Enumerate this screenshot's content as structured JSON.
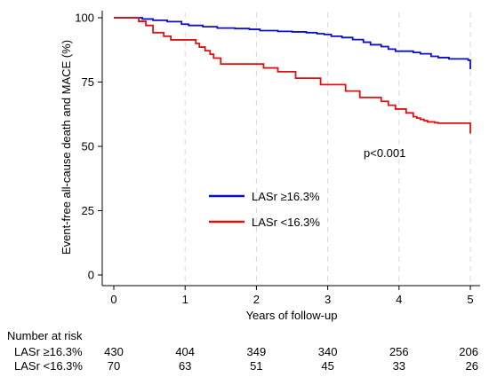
{
  "chart_data": {
    "type": "line",
    "xlabel": "Years of follow-up",
    "ylabel": "Event-free all-cause death and MACE (%)",
    "xlim": [
      0,
      5
    ],
    "ylim": [
      0,
      100
    ],
    "xticks": [
      0,
      1,
      2,
      3,
      4,
      5
    ],
    "yticks": [
      0,
      25,
      50,
      75,
      100
    ],
    "grid": "vertical dashed at x ticks",
    "annotation": "p<0.001",
    "legend": {
      "placement": "center-right"
    },
    "series": [
      {
        "name": "LASr ≥16.3%",
        "color": "#0a10c8",
        "x": [
          0,
          0.4,
          0.55,
          0.75,
          0.95,
          1.05,
          1.25,
          1.45,
          1.7,
          1.9,
          2.05,
          2.3,
          2.5,
          2.7,
          2.85,
          2.95,
          3.05,
          3.2,
          3.35,
          3.5,
          3.6,
          3.75,
          3.85,
          3.95,
          4.2,
          4.3,
          4.45,
          4.55,
          4.7,
          4.97,
          5.0
        ],
        "y": [
          100,
          99.5,
          99,
          98.5,
          97.5,
          97,
          96.5,
          96,
          95.8,
          95.5,
          95,
          94.7,
          94.5,
          94.2,
          93.8,
          93.5,
          92.8,
          92.3,
          91.5,
          90.5,
          89.5,
          88.8,
          87.8,
          87,
          86.5,
          86,
          85,
          84.5,
          84,
          83.5,
          80
        ]
      },
      {
        "name": "LASr <16.3%",
        "color": "#e01010",
        "x": [
          0,
          0.35,
          0.45,
          0.55,
          0.7,
          0.8,
          1.15,
          1.2,
          1.28,
          1.35,
          1.4,
          1.5,
          2.1,
          2.3,
          2.55,
          2.9,
          3.25,
          3.45,
          3.75,
          3.85,
          3.95,
          4.1,
          4.2,
          4.25,
          4.3,
          4.35,
          4.4,
          4.5,
          4.55,
          4.97,
          5.0
        ],
        "y": [
          100,
          98.6,
          97,
          94.2,
          92.8,
          91.4,
          90,
          88.6,
          87.2,
          85.8,
          84.3,
          82,
          80.5,
          79,
          76.5,
          74,
          71.5,
          69,
          67.5,
          66,
          64.5,
          63,
          61.5,
          61,
          60.5,
          60,
          59.5,
          59.2,
          59,
          59,
          55
        ]
      }
    ]
  },
  "risk_table": {
    "title": "Number at risk",
    "rows": [
      {
        "label": "LASr ≥16.3%",
        "values": [
          "430",
          "404",
          "349",
          "340",
          "256",
          "206"
        ]
      },
      {
        "label": "LASr <16.3%",
        "values": [
          "70",
          "63",
          "51",
          "45",
          "33",
          "26"
        ]
      }
    ]
  }
}
